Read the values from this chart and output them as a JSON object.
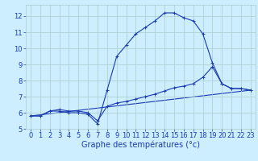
{
  "xlabel": "Graphe des températures (°c)",
  "background_color": "#cceeff",
  "grid_color": "#aacccc",
  "line_color": "#1a3ab0",
  "xlim": [
    -0.5,
    23.5
  ],
  "ylim": [
    5.0,
    12.7
  ],
  "yticks": [
    5,
    6,
    7,
    8,
    9,
    10,
    11,
    12
  ],
  "xticks": [
    0,
    1,
    2,
    3,
    4,
    5,
    6,
    7,
    8,
    9,
    10,
    11,
    12,
    13,
    14,
    15,
    16,
    17,
    18,
    19,
    20,
    21,
    22,
    23
  ],
  "line1_x": [
    0,
    1,
    2,
    3,
    4,
    5,
    6,
    7,
    8,
    9,
    10,
    11,
    12,
    13,
    14,
    15,
    16,
    17,
    18,
    19,
    20,
    21,
    22,
    23
  ],
  "line1_y": [
    5.8,
    5.8,
    6.1,
    6.1,
    6.0,
    6.0,
    5.9,
    5.3,
    7.4,
    9.5,
    10.2,
    10.9,
    11.3,
    11.7,
    12.2,
    12.2,
    11.9,
    11.7,
    10.9,
    9.1,
    7.8,
    7.5,
    7.5,
    7.4
  ],
  "line2_x": [
    0,
    1,
    2,
    3,
    4,
    5,
    6,
    7,
    8,
    9,
    10,
    11,
    12,
    13,
    14,
    15,
    16,
    17,
    18,
    19,
    20,
    21,
    22,
    23
  ],
  "line2_y": [
    5.8,
    5.8,
    6.1,
    6.2,
    6.1,
    6.1,
    6.0,
    5.5,
    6.4,
    6.6,
    6.7,
    6.85,
    7.0,
    7.15,
    7.35,
    7.55,
    7.65,
    7.8,
    8.2,
    8.85,
    7.8,
    7.5,
    7.5,
    7.4
  ],
  "line3_x": [
    0,
    23
  ],
  "line3_y": [
    5.8,
    7.4
  ],
  "xlabel_fontsize": 7,
  "tick_fontsize": 6,
  "marker_size": 3
}
